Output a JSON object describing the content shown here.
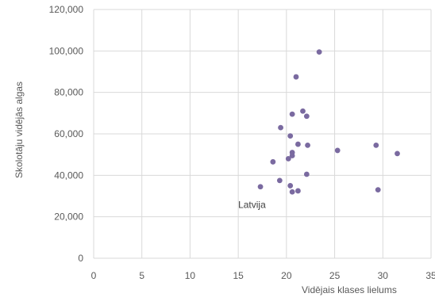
{
  "chart_data": {
    "type": "scatter",
    "title": "",
    "xlabel": "Vidējais klases lielums",
    "ylabel": "Skolotāju vidējās algas",
    "xlim": [
      0,
      35
    ],
    "ylim": [
      0,
      120000
    ],
    "x_ticks": [
      0,
      5,
      10,
      15,
      20,
      25,
      30,
      35
    ],
    "x_tick_labels": [
      "0",
      "5",
      "10",
      "15",
      "20",
      "25",
      "30",
      "35"
    ],
    "y_ticks": [
      0,
      20000,
      40000,
      60000,
      80000,
      100000,
      120000
    ],
    "y_tick_labels": [
      "0",
      "20,000",
      "40,000",
      "60,000",
      "80,000",
      "100,000",
      "120,000"
    ],
    "grid": true,
    "legend": "none",
    "marker_color": "#7a6aa0",
    "points": [
      {
        "x": 23.4,
        "y": 99500
      },
      {
        "x": 21.0,
        "y": 87500
      },
      {
        "x": 21.7,
        "y": 71000
      },
      {
        "x": 20.6,
        "y": 69500
      },
      {
        "x": 22.1,
        "y": 68500
      },
      {
        "x": 19.4,
        "y": 63000
      },
      {
        "x": 20.4,
        "y": 59000
      },
      {
        "x": 21.2,
        "y": 55000
      },
      {
        "x": 22.2,
        "y": 54500
      },
      {
        "x": 29.3,
        "y": 54500
      },
      {
        "x": 25.3,
        "y": 52000
      },
      {
        "x": 20.6,
        "y": 51000
      },
      {
        "x": 31.5,
        "y": 50500
      },
      {
        "x": 20.6,
        "y": 49500
      },
      {
        "x": 20.2,
        "y": 48000
      },
      {
        "x": 18.6,
        "y": 46500
      },
      {
        "x": 22.1,
        "y": 40500
      },
      {
        "x": 19.3,
        "y": 37500
      },
      {
        "x": 20.4,
        "y": 35000
      },
      {
        "x": 17.3,
        "y": 34500
      },
      {
        "x": 29.5,
        "y": 33000
      },
      {
        "x": 21.2,
        "y": 32500
      },
      {
        "x": 20.6,
        "y": 32000
      }
    ],
    "annotations": [
      {
        "text": "Latvija",
        "x": 17.3,
        "y": 34500
      }
    ]
  }
}
